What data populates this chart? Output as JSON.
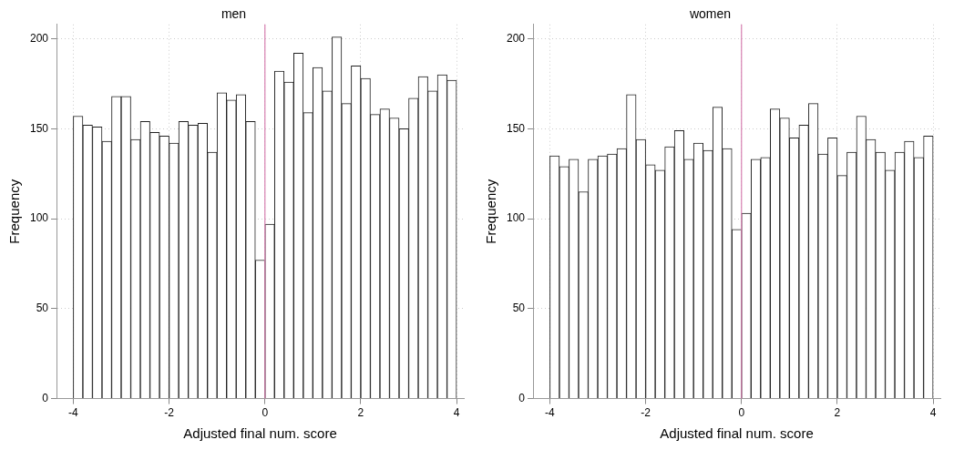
{
  "chart_data": [
    {
      "type": "histogram",
      "title": "men",
      "xlabel": "Adjusted final num. score",
      "ylabel": "Frequency",
      "bins": [
        -4,
        -3.8,
        -3.6,
        -3.4,
        -3.2,
        -3,
        -2.8,
        -2.6,
        -2.4,
        -2.2,
        -2,
        -1.8,
        -1.6,
        -1.4,
        -1.2,
        -1,
        -0.8,
        -0.6,
        -0.4,
        -0.2,
        0,
        0.2,
        0.4,
        0.6,
        0.8,
        1,
        1.2,
        1.4,
        1.6,
        1.8,
        2,
        2.2,
        2.4,
        2.6,
        2.8,
        3,
        3.2,
        3.4,
        3.6,
        3.8,
        4
      ],
      "values": [
        157,
        152,
        151,
        143,
        168,
        168,
        144,
        154,
        148,
        146,
        142,
        154,
        152,
        153,
        137,
        170,
        166,
        169,
        154,
        77,
        97,
        182,
        176,
        192,
        159,
        184,
        171,
        201,
        164,
        185,
        178,
        158,
        161,
        156,
        150,
        167,
        179,
        171,
        180,
        177
      ],
      "color": "#ffffff",
      "xlim": [
        -4.35,
        4.15
      ],
      "xticks": [
        -4,
        -2,
        0,
        2,
        4
      ],
      "ylim": [
        0,
        208
      ],
      "yticks": [
        0,
        50,
        100,
        150,
        200
      ],
      "grid": true,
      "ref_lines": [
        {
          "axis": "x",
          "value": 0,
          "color": "#d77fb0"
        }
      ]
    },
    {
      "type": "histogram",
      "title": "women",
      "xlabel": "Adjusted final num. score",
      "ylabel": "Frequency",
      "bins": [
        -4,
        -3.8,
        -3.6,
        -3.4,
        -3.2,
        -3,
        -2.8,
        -2.6,
        -2.4,
        -2.2,
        -2,
        -1.8,
        -1.6,
        -1.4,
        -1.2,
        -1,
        -0.8,
        -0.6,
        -0.4,
        -0.2,
        0,
        0.2,
        0.4,
        0.6,
        0.8,
        1,
        1.2,
        1.4,
        1.6,
        1.8,
        2,
        2.2,
        2.4,
        2.6,
        2.8,
        3,
        3.2,
        3.4,
        3.6,
        3.8,
        4
      ],
      "values": [
        135,
        129,
        133,
        115,
        133,
        135,
        136,
        139,
        169,
        144,
        130,
        127,
        140,
        149,
        133,
        142,
        138,
        162,
        139,
        94,
        103,
        133,
        134,
        161,
        156,
        145,
        152,
        164,
        136,
        145,
        124,
        137,
        157,
        144,
        137,
        127,
        137,
        143,
        134,
        146
      ],
      "color": "#ffffff",
      "xlim": [
        -4.35,
        4.15
      ],
      "xticks": [
        -4,
        -2,
        0,
        2,
        4
      ],
      "ylim": [
        0,
        208
      ],
      "yticks": [
        0,
        50,
        100,
        150,
        200
      ],
      "grid": true,
      "ref_lines": [
        {
          "axis": "x",
          "value": 0,
          "color": "#d77fb0"
        }
      ]
    }
  ]
}
